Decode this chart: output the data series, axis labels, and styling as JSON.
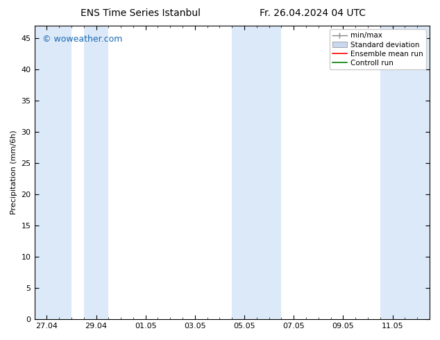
{
  "title_left": "ENS Time Series Istanbul",
  "title_right": "Fr. 26.04.2024 04 UTC",
  "ylabel": "Precipitation (mm/6h)",
  "ylim": [
    0,
    47
  ],
  "yticks": [
    0,
    5,
    10,
    15,
    20,
    25,
    30,
    35,
    40,
    45
  ],
  "background_color": "#ffffff",
  "watermark": "© woweather.com",
  "watermark_color": "#1a6ab5",
  "x_labels": [
    "27.04",
    "29.04",
    "01.05",
    "03.05",
    "05.05",
    "07.05",
    "09.05",
    "11.05"
  ],
  "x_tick_positions": [
    0,
    2,
    4,
    6,
    8,
    10,
    12,
    14
  ],
  "x_min": -0.5,
  "x_max": 15.5,
  "band_color": "#dce9f8",
  "shaded_x_positions": [
    [
      -0.5,
      1.0
    ],
    [
      1.5,
      2.5
    ],
    [
      7.5,
      9.5
    ],
    [
      13.5,
      15.5
    ]
  ],
  "legend_items": [
    {
      "label": "min/max",
      "color": "#999999",
      "type": "errorbar"
    },
    {
      "label": "Standard deviation",
      "color": "#c8d8f0",
      "type": "band"
    },
    {
      "label": "Ensemble mean run",
      "color": "#ff0000",
      "type": "line"
    },
    {
      "label": "Controll run",
      "color": "#008000",
      "type": "line"
    }
  ],
  "title_fontsize": 10,
  "ylabel_fontsize": 8,
  "tick_fontsize": 8,
  "watermark_fontsize": 9,
  "legend_fontsize": 7.5
}
